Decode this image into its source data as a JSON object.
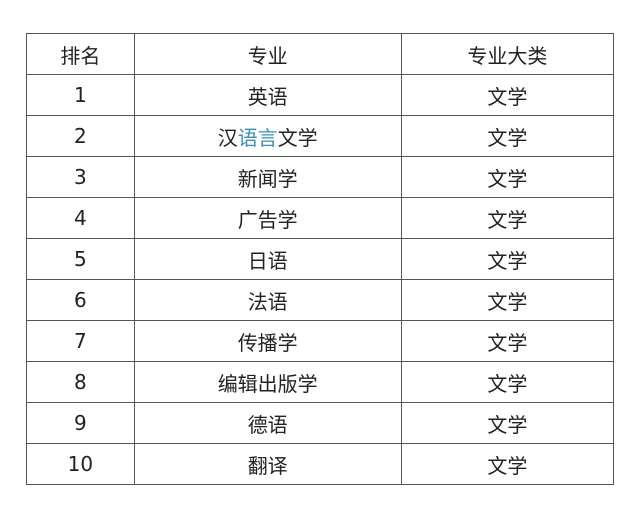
{
  "headers": [
    "排名",
    "专业",
    "专业大类"
  ],
  "rows": [
    {
      "rank": "1",
      "major_pre": "英语",
      "major_hl": "",
      "major_post": "",
      "category": "文学"
    },
    {
      "rank": "2",
      "major_pre": "汉",
      "major_hl": "语言",
      "major_post": "文学",
      "category": "文学"
    },
    {
      "rank": "3",
      "major_pre": "新闻学",
      "major_hl": "",
      "major_post": "",
      "category": "文学"
    },
    {
      "rank": "4",
      "major_pre": "广告学",
      "major_hl": "",
      "major_post": "",
      "category": "文学"
    },
    {
      "rank": "5",
      "major_pre": "日语",
      "major_hl": "",
      "major_post": "",
      "category": "文学"
    },
    {
      "rank": "6",
      "major_pre": "法语",
      "major_hl": "",
      "major_post": "",
      "category": "文学"
    },
    {
      "rank": "7",
      "major_pre": "传播学",
      "major_hl": "",
      "major_post": "",
      "category": "文学"
    },
    {
      "rank": "8",
      "major_pre": "编辑出版学",
      "major_hl": "",
      "major_post": "",
      "category": "文学"
    },
    {
      "rank": "9",
      "major_pre": "德语",
      "major_hl": "",
      "major_post": "",
      "category": "文学"
    },
    {
      "rank": "10",
      "major_pre": "翻译",
      "major_hl": "",
      "major_post": "",
      "category": "文学"
    }
  ],
  "highlight_color": "#3a8fc0"
}
